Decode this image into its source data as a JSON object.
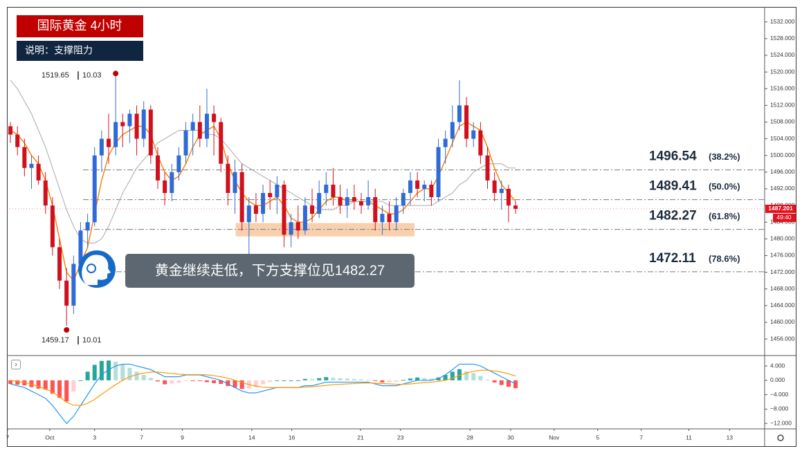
{
  "header": {
    "title": "国际黄金 4小时",
    "subtitle": "说明：支撑阻力"
  },
  "chart_data": {
    "type": "candlestick",
    "open": [
      1507,
      1505,
      1502,
      1497,
      1498,
      1494,
      1488,
      1478,
      1470,
      1464,
      1474,
      1482,
      1484,
      1500,
      1504,
      1502,
      1508,
      1507,
      1510,
      1504,
      1511,
      1500,
      1494,
      1491,
      1496,
      1500,
      1506,
      1508,
      1504,
      1510,
      1508,
      1498,
      1491,
      1496,
      1484,
      1488,
      1486,
      1491,
      1490,
      1493,
      1481,
      1484,
      1482,
      1488,
      1486,
      1491,
      1493,
      1490,
      1488,
      1490,
      1489,
      1488,
      1490,
      1484,
      1486,
      1484,
      1488,
      1491,
      1494,
      1492,
      1493,
      1490,
      1502,
      1504,
      1508,
      1512,
      1504,
      1506,
      1500,
      1494,
      1491,
      1492,
      1488
    ],
    "high": [
      1508,
      1507,
      1504,
      1500,
      1500,
      1496,
      1490,
      1480,
      1473,
      1476,
      1484,
      1486,
      1502,
      1506,
      1510,
      1519.65,
      1510,
      1511,
      1512,
      1513,
      1512,
      1502,
      1496,
      1498,
      1502,
      1508,
      1510,
      1512,
      1516,
      1512,
      1509,
      1500,
      1499,
      1498,
      1490,
      1491,
      1493,
      1494,
      1495,
      1494,
      1486,
      1488,
      1490,
      1492,
      1494,
      1496,
      1497,
      1493,
      1492,
      1493,
      1491,
      1494,
      1492,
      1488,
      1489,
      1490,
      1492,
      1496,
      1496,
      1494,
      1494,
      1504,
      1506,
      1512,
      1518,
      1514,
      1508,
      1508,
      1502,
      1496,
      1494,
      1493,
      1489
    ],
    "low": [
      1503,
      1500,
      1495,
      1492,
      1493,
      1486,
      1476,
      1468,
      1459.17,
      1462,
      1472,
      1478,
      1483,
      1496,
      1498,
      1500,
      1502,
      1503,
      1500,
      1502,
      1498,
      1492,
      1488,
      1489,
      1494,
      1498,
      1500,
      1502,
      1502,
      1500,
      1496,
      1488,
      1486,
      1482,
      1474,
      1484,
      1484,
      1487,
      1486,
      1478,
      1478,
      1480,
      1481,
      1484,
      1485,
      1488,
      1488,
      1486,
      1485,
      1487,
      1486,
      1487,
      1482,
      1481,
      1482,
      1482,
      1486,
      1488,
      1490,
      1489,
      1488,
      1489,
      1498,
      1502,
      1506,
      1502,
      1502,
      1498,
      1492,
      1489,
      1487,
      1484,
      1486
    ],
    "close": [
      1505,
      1502,
      1497,
      1498,
      1494,
      1488,
      1478,
      1470,
      1464,
      1474,
      1482,
      1484,
      1500,
      1504,
      1502,
      1508,
      1507,
      1510,
      1504,
      1511,
      1500,
      1494,
      1491,
      1496,
      1500,
      1506,
      1508,
      1504,
      1510,
      1508,
      1498,
      1491,
      1496,
      1484,
      1488,
      1486,
      1491,
      1490,
      1493,
      1481,
      1484,
      1482,
      1488,
      1486,
      1491,
      1493,
      1490,
      1488,
      1490,
      1489,
      1488,
      1490,
      1484,
      1486,
      1484,
      1488,
      1491,
      1494,
      1492,
      1493,
      1490,
      1502,
      1504,
      1508,
      1512,
      1504,
      1506,
      1500,
      1494,
      1491,
      1492,
      1488,
      1487.2
    ],
    "up_color": "#2f6bd6",
    "down_color": "#d0101c",
    "xlim": [
      -0.5,
      107.5
    ],
    "xticks": [
      {
        "value": -0.4,
        "label": "7"
      },
      {
        "value": 5.6,
        "label": "Oct"
      },
      {
        "value": 12.0,
        "label": "3"
      },
      {
        "value": 18.7,
        "label": "7"
      },
      {
        "value": 24.5,
        "label": "9"
      },
      {
        "value": 34.4,
        "label": "14"
      },
      {
        "value": 40.1,
        "label": "16"
      },
      {
        "value": 49.9,
        "label": "21"
      },
      {
        "value": 55.6,
        "label": "23"
      },
      {
        "value": 65.5,
        "label": "28"
      },
      {
        "value": 71.3,
        "label": "30"
      },
      {
        "value": 77.5,
        "label": "Nov"
      },
      {
        "value": 83.7,
        "label": "5"
      },
      {
        "value": 89.9,
        "label": "7"
      },
      {
        "value": 96.7,
        "label": "11"
      },
      {
        "value": 102.5,
        "label": "13"
      }
    ],
    "ylim": [
      1452.2,
      1535.6
    ],
    "yticks": [
      {
        "value": 1456,
        "label": "1456.000"
      },
      {
        "value": 1460,
        "label": "1460.000"
      },
      {
        "value": 1464,
        "label": "1464.000"
      },
      {
        "value": 1468,
        "label": "1468.000"
      },
      {
        "value": 1472,
        "label": "1472.000"
      },
      {
        "value": 1476,
        "label": "1476.000"
      },
      {
        "value": 1480,
        "label": "1480.000"
      },
      {
        "value": 1484,
        "label": "1484.000"
      },
      {
        "value": 1488,
        "label": "1488.000"
      },
      {
        "value": 1492,
        "label": "1492.000"
      },
      {
        "value": 1496,
        "label": "1496.000"
      },
      {
        "value": 1500,
        "label": "1500.000"
      },
      {
        "value": 1504,
        "label": "1504.000"
      },
      {
        "value": 1508,
        "label": "1508.000"
      },
      {
        "value": 1512,
        "label": "1512.000"
      },
      {
        "value": 1516,
        "label": "1516.000"
      },
      {
        "value": 1520,
        "label": "1520.000"
      },
      {
        "value": 1524,
        "label": "1524.000"
      },
      {
        "value": 1528,
        "label": "1528.000"
      },
      {
        "value": 1532,
        "label": "1532.000"
      }
    ],
    "moving_averages": [
      {
        "color": "#f57c00",
        "values": [
          1506,
          1505,
          1503,
          1500,
          1498,
          1494,
          1488,
          1480,
          1472,
          1470,
          1474,
          1478,
          1486,
          1494,
          1500,
          1503,
          1505,
          1506,
          1507,
          1507,
          1505,
          1500,
          1496,
          1494,
          1495,
          1498,
          1502,
          1505,
          1506,
          1507,
          1504,
          1498,
          1494,
          1491,
          1489,
          1488,
          1488,
          1489,
          1490,
          1488,
          1485,
          1484,
          1484,
          1485,
          1487,
          1489,
          1490,
          1490,
          1489,
          1489,
          1489,
          1489,
          1488,
          1487,
          1486,
          1486,
          1487,
          1489,
          1491,
          1492,
          1492,
          1495,
          1499,
          1503,
          1507,
          1508,
          1507,
          1506,
          1502,
          1497,
          1493,
          1491,
          1489
        ]
      },
      {
        "color": "#b5b5b5",
        "values": [
          1518,
          1516,
          1513,
          1510,
          1506,
          1502,
          1497,
          1492,
          1487,
          1483,
          1480,
          1479,
          1479,
          1480,
          1483,
          1487,
          1491,
          1494,
          1497,
          1499,
          1501,
          1503,
          1504,
          1505,
          1506,
          1506,
          1506,
          1506,
          1505,
          1505,
          1504,
          1502,
          1500,
          1498,
          1497,
          1496,
          1495,
          1494,
          1493,
          1492,
          1491,
          1490,
          1489,
          1488,
          1487,
          1487,
          1487,
          1488,
          1488,
          1489,
          1489,
          1489,
          1489,
          1489,
          1488,
          1488,
          1488,
          1488,
          1488,
          1488,
          1488,
          1489,
          1490,
          1491,
          1493,
          1494,
          1496,
          1497,
          1498,
          1498,
          1498,
          1497,
          1497
        ]
      }
    ],
    "levels": [
      {
        "price": 1496.54,
        "label": "(38.2%)"
      },
      {
        "price": 1489.41,
        "label": "(50.0%)"
      },
      {
        "price": 1482.27,
        "label": "(61.8%)"
      },
      {
        "price": 1472.11,
        "label": "(78.6%)"
      }
    ],
    "support_zone": {
      "low": 1480.6,
      "high": 1483.8,
      "from": 32.1,
      "to": 57.6
    },
    "high_note": {
      "price": 1519.65,
      "date": "10.03"
    },
    "low_note": {
      "price": 1459.17,
      "date": "10.01"
    },
    "last_price": 1487.201,
    "countdown": "49:40"
  },
  "macd": {
    "type": "macd",
    "ylim": [
      -13.5,
      6.7
    ],
    "yticks": [
      {
        "value": 4,
        "label": "4.000"
      },
      {
        "value": 0,
        "label": "0.000"
      },
      {
        "value": -4,
        "label": "−4.000"
      },
      {
        "value": -8,
        "label": "−8.000"
      },
      {
        "value": -12,
        "label": "−12.000"
      }
    ],
    "histogram": [
      -1,
      -1.2,
      -1.4,
      -1.9,
      -2.3,
      -2.6,
      -3.7,
      -4.9,
      -5.9,
      -3.1,
      0,
      2.4,
      4.3,
      5.4,
      5.5,
      5.2,
      4.5,
      3.5,
      2.4,
      1.5,
      0.7,
      -0.3,
      -1.1,
      -0.9,
      -0.7,
      -0.1,
      -0.1,
      -0.1,
      -0.5,
      -0.8,
      -1,
      -1.6,
      -2,
      -2.4,
      -2.3,
      -1.9,
      -1.1,
      -0.5,
      0,
      0,
      0,
      0,
      0.4,
      0.3,
      0.6,
      0.9,
      0.7,
      0.6,
      0.5,
      0.4,
      0.3,
      0.2,
      -0.2,
      -0.6,
      -0.5,
      -0.4,
      0.1,
      0.5,
      0.8,
      0.6,
      0.5,
      0.8,
      1.5,
      2.4,
      3.1,
      2.5,
      2,
      1.2,
      0.2,
      -0.6,
      -1.3,
      -1.8,
      -2.2
    ],
    "macd": [
      -1,
      -1.5,
      -2,
      -3,
      -4,
      -5,
      -7,
      -9.5,
      -12,
      -10,
      -7,
      -4,
      -1,
      1.5,
      3,
      4,
      4.5,
      4.5,
      4,
      3.5,
      3,
      2,
      1,
      1,
      1,
      1.5,
      1.5,
      1.5,
      1,
      0.5,
      0,
      -1,
      -2,
      -3,
      -3.5,
      -3.5,
      -3,
      -2.5,
      -2,
      -2,
      -2,
      -2,
      -1.5,
      -1.5,
      -1,
      -0.5,
      -0.5,
      -0.5,
      -0.5,
      -0.5,
      -0.5,
      -0.5,
      -1,
      -1.5,
      -1.5,
      -1.5,
      -1,
      -0.5,
      0,
      0,
      0,
      0.5,
      1.5,
      3,
      4.5,
      4.5,
      4.5,
      4,
      3,
      2,
      1,
      0,
      -1
    ],
    "signal": [
      0,
      -0.3,
      -0.6,
      -1.1,
      -1.7,
      -2.4,
      -3.3,
      -4.6,
      -6.1,
      -6.9,
      -7,
      -6.4,
      -5.3,
      -3.9,
      -2.5,
      -1.2,
      0,
      1,
      1.6,
      2,
      2.3,
      2.3,
      2.1,
      1.9,
      1.7,
      1.6,
      1.6,
      1.6,
      1.5,
      1.3,
      1,
      0.6,
      0,
      -0.6,
      -1.2,
      -1.6,
      -1.9,
      -2,
      -2,
      -2,
      -2,
      -2,
      -1.9,
      -1.8,
      -1.6,
      -1.4,
      -1.2,
      -1.1,
      -1,
      -0.9,
      -0.8,
      -0.7,
      -0.8,
      -0.9,
      -1,
      -1.1,
      -1.1,
      -1,
      -0.8,
      -0.6,
      -0.5,
      -0.3,
      0,
      0.6,
      1.4,
      2,
      2.5,
      2.8,
      2.8,
      2.6,
      2.3,
      1.8,
      1.2
    ],
    "macd_color": "#2196f3",
    "signal_color": "#ff9800"
  },
  "callout": "黄金继续走低，下方支撑位见1482.27"
}
